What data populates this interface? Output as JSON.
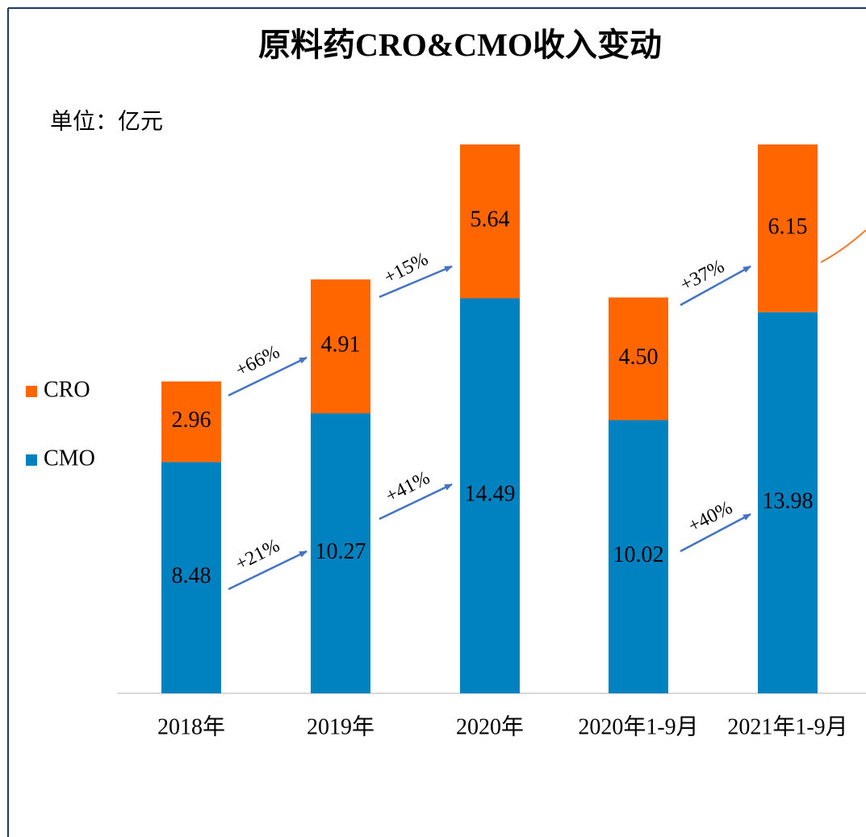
{
  "chart_data": {
    "type": "bar",
    "stacked": true,
    "title": "原料药CRO&CMO收入变动",
    "subtitle": "单位：亿元",
    "categories": [
      "2018年",
      "2019年",
      "2020年",
      "2020年1-9月",
      "2021年1-9月"
    ],
    "series": [
      {
        "name": "CMO",
        "color": "#0082C0",
        "values": [
          8.48,
          10.27,
          14.49,
          10.02,
          13.98
        ],
        "value_labels": [
          "8.48",
          "10.27",
          "14.49",
          "10.02",
          "13.98"
        ]
      },
      {
        "name": "CRO",
        "color": "#FF6600",
        "values": [
          2.96,
          4.91,
          5.64,
          4.5,
          6.15
        ],
        "value_labels": [
          "2.96",
          "4.91",
          "5.64",
          "4.50",
          "6.15"
        ]
      }
    ],
    "annotations": [
      {
        "text": "+66%"
      },
      {
        "text": "+21%"
      },
      {
        "text": "+15%"
      },
      {
        "text": "+41%"
      },
      {
        "text": "+37%"
      },
      {
        "text": "+40%"
      }
    ],
    "legend": "left"
  }
}
